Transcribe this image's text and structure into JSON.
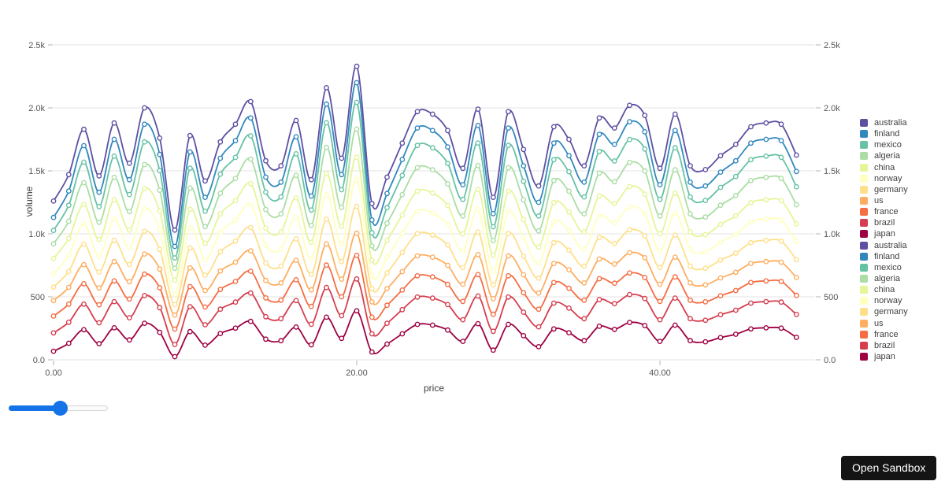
{
  "chart_data": {
    "type": "line",
    "title": "",
    "xlabel": "price",
    "ylabel": "volume",
    "xlim": [
      0,
      50.2
    ],
    "ylim": [
      0,
      2500
    ],
    "grid": "horizontal",
    "legend_position": "right",
    "markers": true,
    "curve": "smooth",
    "x_ticks": [
      {
        "value": 0,
        "label": "0.00"
      },
      {
        "value": 20,
        "label": "20.00"
      },
      {
        "value": 40,
        "label": "40.00"
      }
    ],
    "y_ticks": [
      {
        "value": 0,
        "label": "0.0"
      },
      {
        "value": 500,
        "label": "500"
      },
      {
        "value": 1000,
        "label": "1.0k"
      },
      {
        "value": 1500,
        "label": "1.5k"
      },
      {
        "value": 2000,
        "label": "2.0k"
      },
      {
        "value": 2500,
        "label": "2.5k"
      }
    ],
    "y_axis_sides": [
      "left",
      "right"
    ],
    "x": [
      0,
      1,
      2,
      3,
      4,
      5,
      6,
      7,
      8,
      9,
      10,
      11,
      12,
      13,
      14,
      15,
      16,
      17,
      18,
      19,
      20,
      21,
      22,
      23,
      24,
      25,
      26,
      27,
      28,
      29,
      30,
      31,
      32,
      33,
      34,
      35,
      36,
      37,
      38,
      39,
      40,
      41,
      42,
      43,
      44,
      45,
      46,
      47,
      48,
      49
    ],
    "series": [
      {
        "name": "australia",
        "color": "#5e4fa2",
        "values": [
          1260,
          1470,
          1830,
          1460,
          1880,
          1560,
          2000,
          1760,
          1030,
          1780,
          1420,
          1730,
          1870,
          2050,
          1580,
          1540,
          1900,
          1430,
          2160,
          1600,
          2330,
          1240,
          1450,
          1720,
          1970,
          1950,
          1820,
          1520,
          1990,
          1290,
          1970,
          1670,
          1380,
          1850,
          1750,
          1540,
          1920,
          1840,
          2020,
          1940,
          1520,
          1950,
          1540,
          1510,
          1620,
          1710,
          1850,
          1880,
          1870,
          1625
        ]
      },
      {
        "name": "finland",
        "color": "#3288bd",
        "values": [
          1130,
          1340,
          1700,
          1330,
          1750,
          1430,
          1870,
          1630,
          900,
          1650,
          1290,
          1600,
          1740,
          1920,
          1450,
          1410,
          1770,
          1300,
          2030,
          1470,
          2200,
          1110,
          1320,
          1590,
          1840,
          1820,
          1690,
          1390,
          1860,
          1160,
          1840,
          1540,
          1250,
          1720,
          1620,
          1410,
          1790,
          1710,
          1890,
          1810,
          1390,
          1820,
          1410,
          1380,
          1490,
          1580,
          1720,
          1750,
          1740,
          1495
        ]
      },
      {
        "name": "mexico",
        "color": "#66c2a5",
        "values": [
          1027,
          1227,
          1569,
          1217,
          1616,
          1312,
          1730,
          1502,
          809,
          1521,
          1179,
          1474,
          1607,
          1778,
          1331,
          1293,
          1635,
          1189,
          1882,
          1350,
          2044,
          1008,
          1208,
          1464,
          1702,
          1683,
          1559,
          1274,
          1721,
          1056,
          1702,
          1417,
          1141,
          1588,
          1493,
          1293,
          1654,
          1578,
          1749,
          1673,
          1274,
          1683,
          1293,
          1265,
          1369,
          1455,
          1588,
          1616,
          1607,
          1374
        ]
      },
      {
        "name": "algeria",
        "color": "#abdda4",
        "values": [
          921,
          1100,
          1406,
          1091,
          1448,
          1176,
          1550,
          1346,
          726,
          1363,
          1057,
          1321,
          1440,
          1593,
          1193,
          1159,
          1465,
          1066,
          1686,
          1210,
          1831,
          904,
          1083,
          1312,
          1525,
          1508,
          1397,
          1142,
          1542,
          947,
          1525,
          1270,
          1023,
          1423,
          1338,
          1159,
          1482,
          1414,
          1567,
          1499,
          1142,
          1508,
          1159,
          1134,
          1227,
          1304,
          1423,
          1448,
          1440,
          1231
        ]
      },
      {
        "name": "china",
        "color": "#e6f598",
        "values": [
          805,
          963,
          1233,
          955,
          1270,
          1030,
          1360,
          1180,
          633,
          1195,
          925,
          1158,
          1263,
          1398,
          1045,
          1015,
          1285,
          933,
          1480,
          1060,
          1608,
          790,
          948,
          1150,
          1338,
          1323,
          1225,
          1000,
          1353,
          828,
          1338,
          1113,
          895,
          1248,
          1173,
          1015,
          1300,
          1240,
          1375,
          1315,
          1000,
          1323,
          1015,
          993,
          1075,
          1143,
          1248,
          1270,
          1263,
          1079
        ]
      },
      {
        "name": "norway",
        "color": "#ffffbf",
        "values": [
          682,
          829,
          1081,
          822,
          1116,
          892,
          1200,
          1032,
          521,
          1046,
          794,
          1011,
          1109,
          1235,
          906,
          878,
          1130,
          801,
          1312,
          920,
          1431,
          668,
          815,
          1004,
          1179,
          1165,
          1074,
          864,
          1193,
          703,
          1179,
          969,
          766,
          1095,
          1025,
          878,
          1144,
          1088,
          1214,
          1158,
          864,
          1165,
          878,
          857,
          934,
          997,
          1095,
          1116,
          1109,
          938
        ]
      },
      {
        "name": "germany",
        "color": "#fee08b",
        "values": [
          576,
          702,
          918,
          696,
          948,
          756,
          1020,
          876,
          438,
          888,
          672,
          858,
          942,
          1050,
          768,
          744,
          960,
          678,
          1116,
          780,
          1218,
          564,
          690,
          852,
          1002,
          990,
          912,
          732,
          1014,
          594,
          1002,
          822,
          648,
          930,
          870,
          744,
          972,
          924,
          1032,
          984,
          732,
          990,
          744,
          726,
          792,
          846,
          930,
          948,
          942,
          795
        ]
      },
      {
        "name": "us",
        "color": "#fdae61",
        "values": [
          470,
          575,
          755,
          570,
          780,
          620,
          840,
          720,
          355,
          730,
          550,
          705,
          775,
          865,
          630,
          610,
          790,
          555,
          920,
          640,
          1005,
          460,
          565,
          700,
          825,
          815,
          750,
          600,
          835,
          485,
          825,
          675,
          530,
          765,
          715,
          610,
          800,
          760,
          850,
          810,
          600,
          815,
          610,
          595,
          650,
          695,
          765,
          780,
          775,
          653
        ]
      },
      {
        "name": "france",
        "color": "#f46d43",
        "values": [
          347,
          442,
          604,
          437,
          626,
          482,
          680,
          572,
          244,
          581,
          419,
          559,
          622,
          703,
          491,
          473,
          635,
          424,
          752,
          500,
          829,
          338,
          433,
          554,
          667,
          658,
          599,
          464,
          676,
          361,
          667,
          532,
          401,
          613,
          568,
          473,
          644,
          608,
          689,
          653,
          464,
          658,
          473,
          460,
          509,
          550,
          613,
          626,
          622,
          511
        ]
      },
      {
        "name": "brazil",
        "color": "#d53e4f",
        "values": [
          214,
          298,
          442,
          294,
          462,
          334,
          510,
          414,
          122,
          422,
          278,
          402,
          458,
          530,
          342,
          326,
          470,
          282,
          574,
          350,
          642,
          206,
          290,
          398,
          498,
          490,
          438,
          318,
          506,
          226,
          498,
          378,
          262,
          450,
          410,
          326,
          478,
          446,
          518,
          486,
          318,
          490,
          326,
          314,
          358,
          394,
          450,
          462,
          458,
          360
        ]
      },
      {
        "name": "japan",
        "color": "#9e0142",
        "values": [
          68,
          131,
          239,
          128,
          254,
          158,
          290,
          218,
          25,
          224,
          116,
          209,
          251,
          305,
          164,
          152,
          260,
          119,
          338,
          170,
          389,
          62,
          125,
          206,
          281,
          275,
          236,
          146,
          287,
          77,
          281,
          191,
          104,
          245,
          215,
          152,
          266,
          242,
          296,
          272,
          146,
          275,
          152,
          143,
          176,
          203,
          245,
          254,
          251,
          178
        ]
      }
    ],
    "legend_items": [
      "australia",
      "finland",
      "mexico",
      "algeria",
      "china",
      "norway",
      "germany",
      "us",
      "france",
      "brazil",
      "japan",
      "australia",
      "finland",
      "mexico",
      "algeria",
      "china",
      "norway",
      "germany",
      "us",
      "france",
      "brazil",
      "japan"
    ]
  },
  "controls": {
    "slider": {
      "value": 52,
      "min": 0,
      "max": 100,
      "accent_color": "#1473e6"
    }
  },
  "sandbox": {
    "button_label": "Open Sandbox",
    "button_bg": "#141414",
    "button_text_color": "#ffffff"
  },
  "style_colors": {
    "gridline": "#e3e3e3",
    "tick_mark": "#b3b3b3",
    "tick_text": "#565656",
    "axis_title_text": "#3d3d3d",
    "background": "#ffffff"
  }
}
